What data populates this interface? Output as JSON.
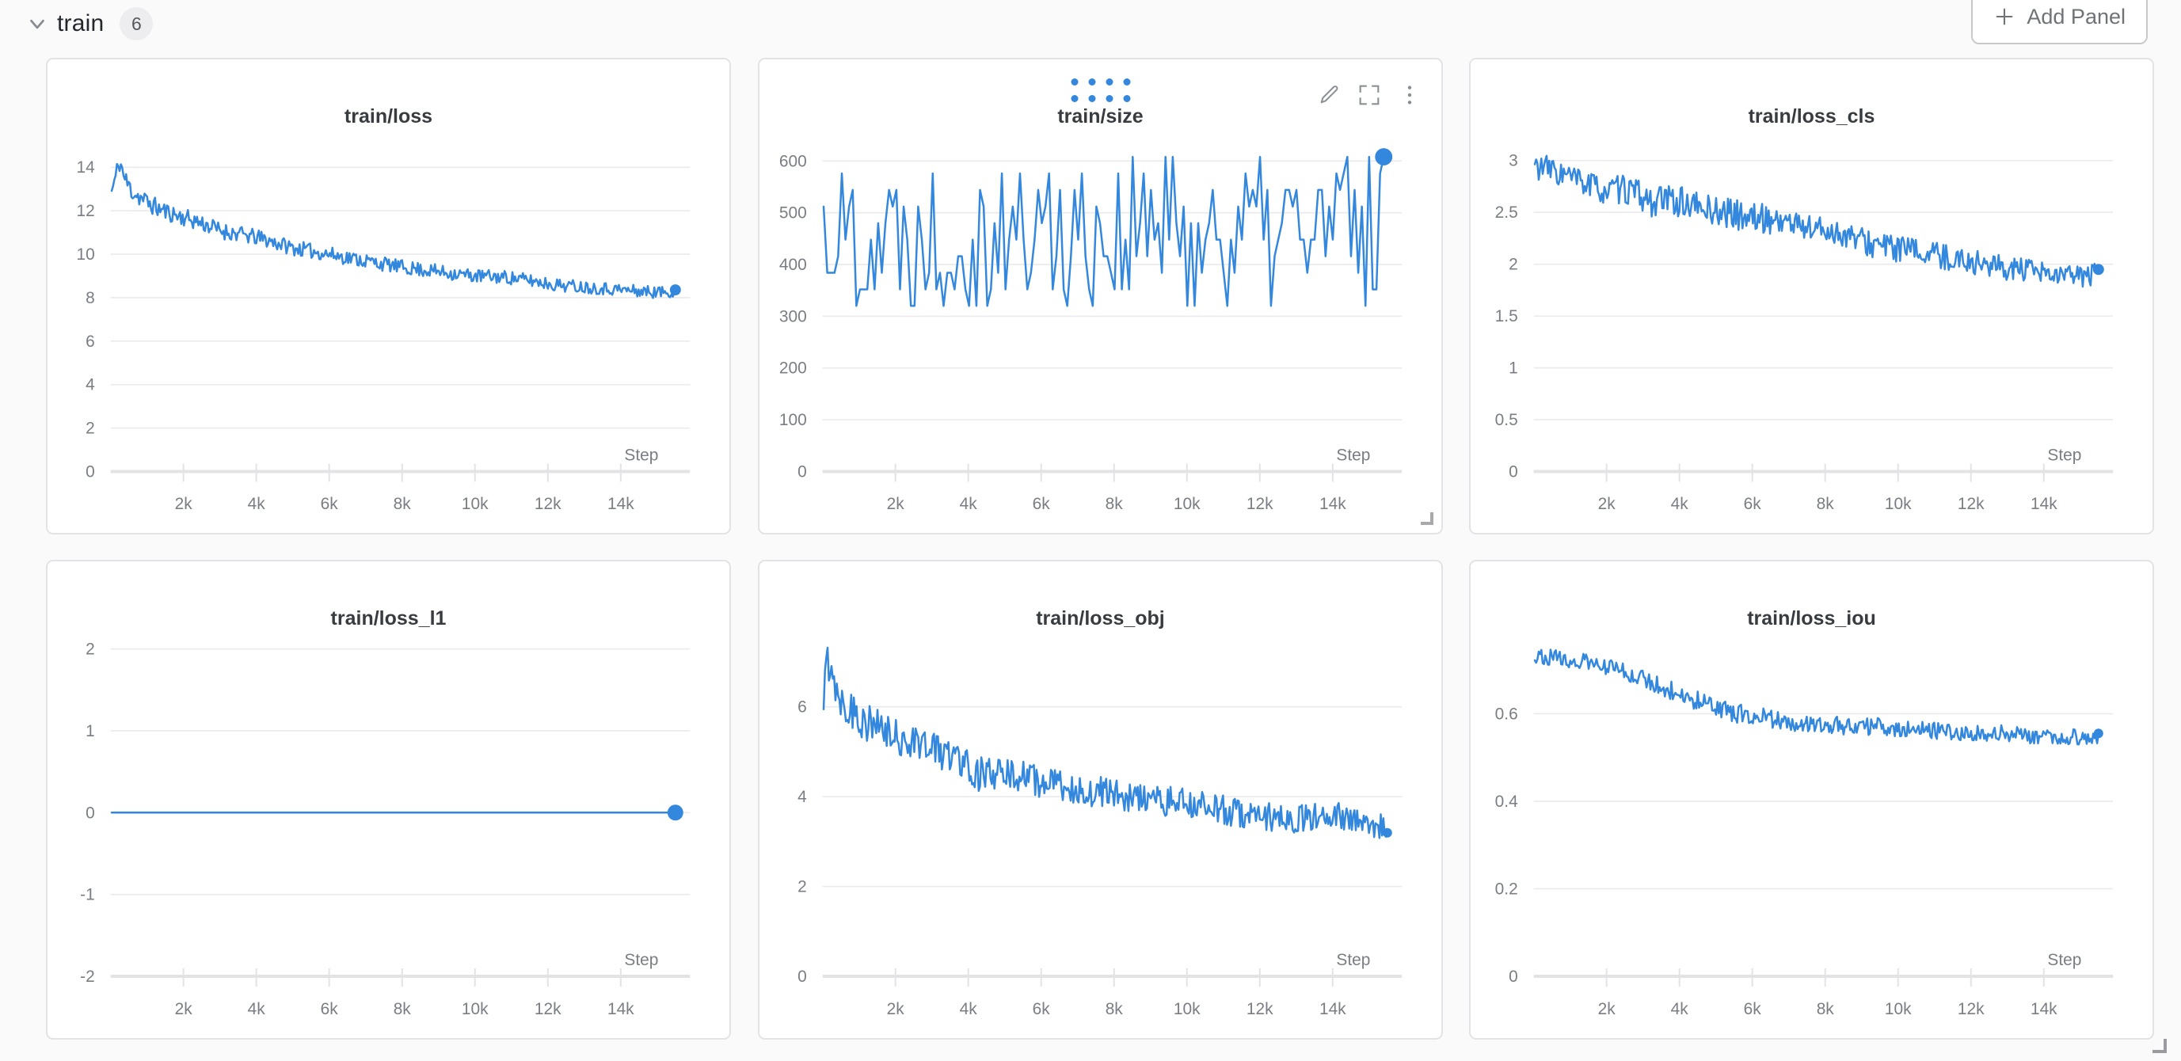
{
  "colors": {
    "accent": "#3388de",
    "grid": "#eaeaed",
    "axis": "#e3e3e6",
    "tick_text": "#7a7d84",
    "title_text": "#383c40",
    "panel_bg": "#ffffff",
    "page_bg": "#fafafa",
    "icon_gray": "#8b9095"
  },
  "header": {
    "section_title": "train",
    "panel_count": "6",
    "add_panel_label": "Add Panel",
    "icons": [
      "chevron-down-icon",
      "plus-icon"
    ]
  },
  "hover_chrome": {
    "panel_index": 1,
    "icons": [
      "drag-handle-dots",
      "edit-pencil-icon",
      "fullscreen-icon",
      "kebab-menu-icon",
      "resize-corner-icon"
    ]
  },
  "chart_data": [
    {
      "title": "train/loss",
      "type": "line",
      "kind": "trend",
      "seed": 11,
      "n_points": 430,
      "x_start": 30,
      "x_end": 15500,
      "xlim": [
        0,
        15900
      ],
      "ylim": [
        0,
        15.6
      ],
      "xlabel": "Step",
      "x_ticks": [
        {
          "v": 2000,
          "label": "2k"
        },
        {
          "v": 4000,
          "label": "4k"
        },
        {
          "v": 6000,
          "label": "6k"
        },
        {
          "v": 8000,
          "label": "8k"
        },
        {
          "v": 10000,
          "label": "10k"
        },
        {
          "v": 12000,
          "label": "12k"
        },
        {
          "v": 14000,
          "label": "14k"
        }
      ],
      "y_ticks": [
        {
          "v": 0,
          "label": "0"
        },
        {
          "v": 2,
          "label": "2"
        },
        {
          "v": 4,
          "label": "4"
        },
        {
          "v": 6,
          "label": "6"
        },
        {
          "v": 8,
          "label": "8"
        },
        {
          "v": 10,
          "label": "10"
        },
        {
          "v": 12,
          "label": "12"
        },
        {
          "v": 14,
          "label": "14"
        }
      ],
      "trend": [
        [
          30,
          12.9
        ],
        [
          120,
          13.4
        ],
        [
          250,
          14.3
        ],
        [
          400,
          13.4
        ],
        [
          600,
          12.9
        ],
        [
          900,
          12.5
        ],
        [
          1300,
          12.1
        ],
        [
          1800,
          11.8
        ],
        [
          2400,
          11.5
        ],
        [
          3000,
          11.1
        ],
        [
          3600,
          10.9
        ],
        [
          4200,
          10.7
        ],
        [
          5000,
          10.3
        ],
        [
          6000,
          10.0
        ],
        [
          7000,
          9.7
        ],
        [
          8000,
          9.4
        ],
        [
          9000,
          9.2
        ],
        [
          10000,
          9.0
        ],
        [
          10800,
          8.95
        ],
        [
          11500,
          8.8
        ],
        [
          12200,
          8.6
        ],
        [
          13000,
          8.5
        ],
        [
          13800,
          8.4
        ],
        [
          14500,
          8.3
        ],
        [
          15000,
          8.25
        ],
        [
          15500,
          8.3
        ]
      ],
      "noise": [
        [
          0,
          0.55
        ],
        [
          1500,
          0.42
        ],
        [
          5000,
          0.35
        ],
        [
          15500,
          0.28
        ]
      ],
      "end_dot_r": 7
    },
    {
      "title": "train/size",
      "type": "line",
      "kind": "uniform",
      "seed": 22,
      "n_points": 155,
      "x_start": 30,
      "x_end": 15400,
      "xlim": [
        0,
        15900
      ],
      "ylim": [
        0,
        655
      ],
      "xlabel": "Step",
      "x_ticks": [
        {
          "v": 2000,
          "label": "2k"
        },
        {
          "v": 4000,
          "label": "4k"
        },
        {
          "v": 6000,
          "label": "6k"
        },
        {
          "v": 8000,
          "label": "8k"
        },
        {
          "v": 10000,
          "label": "10k"
        },
        {
          "v": 12000,
          "label": "12k"
        },
        {
          "v": 14000,
          "label": "14k"
        }
      ],
      "y_ticks": [
        {
          "v": 0,
          "label": "0"
        },
        {
          "v": 100,
          "label": "100"
        },
        {
          "v": 200,
          "label": "200"
        },
        {
          "v": 300,
          "label": "300"
        },
        {
          "v": 400,
          "label": "400"
        },
        {
          "v": 500,
          "label": "500"
        },
        {
          "v": 600,
          "label": "600"
        }
      ],
      "levels": [
        320,
        352,
        384,
        416,
        448,
        480,
        512,
        544,
        576,
        608
      ],
      "end_value": 608,
      "end_dot_r": 11
    },
    {
      "title": "train/loss_cls",
      "type": "line",
      "kind": "trend",
      "seed": 33,
      "n_points": 430,
      "x_start": 30,
      "x_end": 15500,
      "xlim": [
        0,
        15900
      ],
      "ylim": [
        0,
        3.27
      ],
      "xlabel": "Step",
      "x_ticks": [
        {
          "v": 2000,
          "label": "2k"
        },
        {
          "v": 4000,
          "label": "4k"
        },
        {
          "v": 6000,
          "label": "6k"
        },
        {
          "v": 8000,
          "label": "8k"
        },
        {
          "v": 10000,
          "label": "10k"
        },
        {
          "v": 12000,
          "label": "12k"
        },
        {
          "v": 14000,
          "label": "14k"
        }
      ],
      "y_ticks": [
        {
          "v": 0,
          "label": "0"
        },
        {
          "v": 0.5,
          "label": "0.5"
        },
        {
          "v": 1,
          "label": "1"
        },
        {
          "v": 1.5,
          "label": "1.5"
        },
        {
          "v": 2,
          "label": "2"
        },
        {
          "v": 2.5,
          "label": "2.5"
        },
        {
          "v": 3,
          "label": "3"
        }
      ],
      "trend": [
        [
          30,
          2.95
        ],
        [
          400,
          2.92
        ],
        [
          900,
          2.85
        ],
        [
          1400,
          2.78
        ],
        [
          2000,
          2.7
        ],
        [
          2600,
          2.72
        ],
        [
          3200,
          2.6
        ],
        [
          3800,
          2.62
        ],
        [
          4500,
          2.55
        ],
        [
          5200,
          2.5
        ],
        [
          6000,
          2.45
        ],
        [
          6800,
          2.42
        ],
        [
          7600,
          2.35
        ],
        [
          8400,
          2.3
        ],
        [
          9200,
          2.2
        ],
        [
          10000,
          2.15
        ],
        [
          10800,
          2.1
        ],
        [
          11600,
          2.05
        ],
        [
          12400,
          2.0
        ],
        [
          13200,
          1.95
        ],
        [
          14000,
          1.9
        ],
        [
          14700,
          1.88
        ],
        [
          15500,
          1.9
        ]
      ],
      "noise": [
        [
          0,
          0.13
        ],
        [
          4000,
          0.15
        ],
        [
          15500,
          0.11
        ]
      ],
      "end_dot_r": 7
    },
    {
      "title": "train/loss_l1",
      "type": "line",
      "kind": "trend",
      "seed": 44,
      "n_points": 2,
      "x_start": 30,
      "x_end": 15500,
      "xlim": [
        0,
        15900
      ],
      "ylim": [
        -2,
        2.17
      ],
      "xlabel": "Step",
      "x_ticks": [
        {
          "v": 2000,
          "label": "2k"
        },
        {
          "v": 4000,
          "label": "4k"
        },
        {
          "v": 6000,
          "label": "6k"
        },
        {
          "v": 8000,
          "label": "8k"
        },
        {
          "v": 10000,
          "label": "10k"
        },
        {
          "v": 12000,
          "label": "12k"
        },
        {
          "v": 14000,
          "label": "14k"
        }
      ],
      "y_ticks": [
        {
          "v": -2,
          "label": "-2"
        },
        {
          "v": -1,
          "label": "-1"
        },
        {
          "v": 0,
          "label": "0"
        },
        {
          "v": 1,
          "label": "1"
        },
        {
          "v": 2,
          "label": "2"
        }
      ],
      "trend": [
        [
          30,
          0
        ],
        [
          15500,
          0
        ]
      ],
      "noise": [
        [
          0,
          0
        ],
        [
          15500,
          0
        ]
      ],
      "end_dot_r": 10
    },
    {
      "title": "train/loss_obj",
      "type": "line",
      "kind": "trend",
      "seed": 55,
      "n_points": 430,
      "x_start": 30,
      "x_end": 15500,
      "xlim": [
        0,
        15900
      ],
      "ylim": [
        0,
        7.6
      ],
      "xlabel": "Step",
      "x_ticks": [
        {
          "v": 2000,
          "label": "2k"
        },
        {
          "v": 4000,
          "label": "4k"
        },
        {
          "v": 6000,
          "label": "6k"
        },
        {
          "v": 8000,
          "label": "8k"
        },
        {
          "v": 10000,
          "label": "10k"
        },
        {
          "v": 12000,
          "label": "12k"
        },
        {
          "v": 14000,
          "label": "14k"
        }
      ],
      "y_ticks": [
        {
          "v": 0,
          "label": "0"
        },
        {
          "v": 2,
          "label": "2"
        },
        {
          "v": 4,
          "label": "4"
        },
        {
          "v": 6,
          "label": "6"
        }
      ],
      "trend": [
        [
          30,
          6.0
        ],
        [
          120,
          7.1
        ],
        [
          250,
          6.9
        ],
        [
          400,
          6.4
        ],
        [
          700,
          6.0
        ],
        [
          1000,
          5.8
        ],
        [
          1500,
          5.5
        ],
        [
          2000,
          5.3
        ],
        [
          2600,
          5.25
        ],
        [
          3200,
          5.0
        ],
        [
          3800,
          4.85
        ],
        [
          4300,
          4.5
        ],
        [
          4800,
          4.45
        ],
        [
          5400,
          4.5
        ],
        [
          6000,
          4.3
        ],
        [
          6800,
          4.2
        ],
        [
          7600,
          4.1
        ],
        [
          8400,
          4.0
        ],
        [
          9200,
          3.9
        ],
        [
          10000,
          3.85
        ],
        [
          10800,
          3.75
        ],
        [
          11600,
          3.6
        ],
        [
          12400,
          3.55
        ],
        [
          13200,
          3.5
        ],
        [
          14000,
          3.6
        ],
        [
          14700,
          3.4
        ],
        [
          15500,
          3.35
        ]
      ],
      "noise": [
        [
          0,
          0.5
        ],
        [
          2000,
          0.42
        ],
        [
          8000,
          0.35
        ],
        [
          15500,
          0.3
        ]
      ],
      "end_dot_r": 6
    },
    {
      "title": "train/loss_iou",
      "type": "line",
      "kind": "trend",
      "seed": 66,
      "n_points": 430,
      "x_start": 30,
      "x_end": 15500,
      "xlim": [
        0,
        15900
      ],
      "ylim": [
        0,
        0.78
      ],
      "xlabel": "Step",
      "x_ticks": [
        {
          "v": 2000,
          "label": "2k"
        },
        {
          "v": 4000,
          "label": "4k"
        },
        {
          "v": 6000,
          "label": "6k"
        },
        {
          "v": 8000,
          "label": "8k"
        },
        {
          "v": 10000,
          "label": "10k"
        },
        {
          "v": 12000,
          "label": "12k"
        },
        {
          "v": 14000,
          "label": "14k"
        }
      ],
      "y_ticks": [
        {
          "v": 0,
          "label": "0"
        },
        {
          "v": 0.2,
          "label": "0.2"
        },
        {
          "v": 0.4,
          "label": "0.4"
        },
        {
          "v": 0.6,
          "label": "0.6"
        }
      ],
      "trend": [
        [
          30,
          0.735
        ],
        [
          800,
          0.725
        ],
        [
          1600,
          0.715
        ],
        [
          2400,
          0.7
        ],
        [
          3200,
          0.675
        ],
        [
          4000,
          0.645
        ],
        [
          4800,
          0.62
        ],
        [
          5600,
          0.6
        ],
        [
          6400,
          0.59
        ],
        [
          7200,
          0.58
        ],
        [
          8000,
          0.575
        ],
        [
          8800,
          0.57
        ],
        [
          9600,
          0.57
        ],
        [
          10400,
          0.565
        ],
        [
          11200,
          0.56
        ],
        [
          12000,
          0.555
        ],
        [
          12800,
          0.555
        ],
        [
          13600,
          0.55
        ],
        [
          14400,
          0.55
        ],
        [
          15500,
          0.545
        ]
      ],
      "noise": [
        [
          0,
          0.018
        ],
        [
          5000,
          0.022
        ],
        [
          15500,
          0.018
        ]
      ],
      "end_dot_r": 6
    }
  ]
}
